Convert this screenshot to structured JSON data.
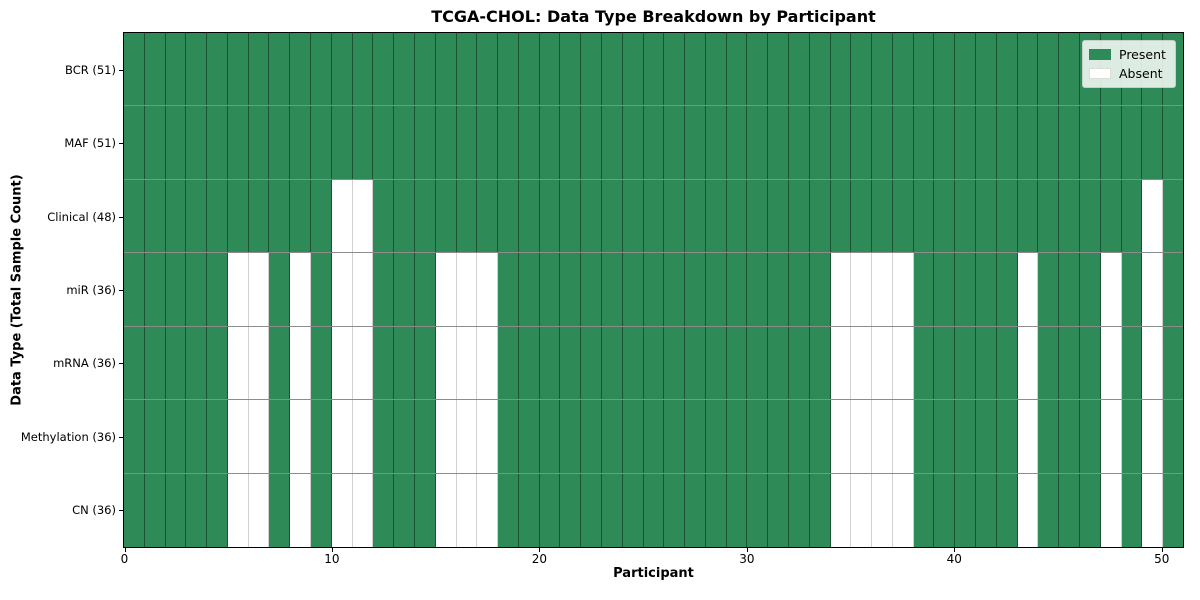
{
  "title": "TCGA-CHOL: Data Type Breakdown by Participant",
  "xlabel": "Participant",
  "ylabel": "Data Type (Total Sample Count)",
  "colors": {
    "present": "#2e8b57",
    "absent": "#ffffff",
    "absent_border": "rgba(0,0,0,0.18)"
  },
  "legend": {
    "entries": [
      {
        "label": "Present",
        "color": "#2e8b57"
      },
      {
        "label": "Absent",
        "color": "#ffffff"
      }
    ]
  },
  "chart_data": {
    "type": "heatmap",
    "title": "TCGA-CHOL: Data Type Breakdown by Participant",
    "xlabel": "Participant",
    "ylabel": "Data Type (Total Sample Count)",
    "n_participants": 51,
    "xlim": [
      0,
      51
    ],
    "x_ticks": [
      0,
      10,
      20,
      30,
      40,
      50
    ],
    "cell_values": {
      "present": 1,
      "absent": 0
    },
    "rows": [
      {
        "label": "BCR (51)",
        "data_type": "BCR",
        "present_count": 51,
        "absent_participants": []
      },
      {
        "label": "MAF (51)",
        "data_type": "MAF",
        "present_count": 51,
        "absent_participants": []
      },
      {
        "label": "Clinical (48)",
        "data_type": "Clinical",
        "present_count": 48,
        "absent_participants": [
          10,
          11,
          49
        ]
      },
      {
        "label": "miR (36)",
        "data_type": "miR",
        "present_count": 36,
        "absent_participants": [
          5,
          6,
          8,
          10,
          11,
          15,
          16,
          17,
          34,
          35,
          36,
          37,
          43,
          47,
          49
        ]
      },
      {
        "label": "mRNA (36)",
        "data_type": "mRNA",
        "present_count": 36,
        "absent_participants": [
          5,
          6,
          8,
          10,
          11,
          15,
          16,
          17,
          34,
          35,
          36,
          37,
          43,
          47,
          49
        ]
      },
      {
        "label": "Methylation (36)",
        "data_type": "Methylation",
        "present_count": 36,
        "absent_participants": [
          5,
          6,
          8,
          10,
          11,
          15,
          16,
          17,
          34,
          35,
          36,
          37,
          43,
          47,
          49
        ]
      },
      {
        "label": "CN (36)",
        "data_type": "CN",
        "present_count": 36,
        "absent_participants": [
          5,
          6,
          8,
          10,
          11,
          15,
          16,
          17,
          34,
          35,
          36,
          37,
          43,
          47,
          49
        ]
      }
    ],
    "legend_entries": [
      "Present",
      "Absent"
    ],
    "legend_position": "upper right",
    "grid": true
  }
}
